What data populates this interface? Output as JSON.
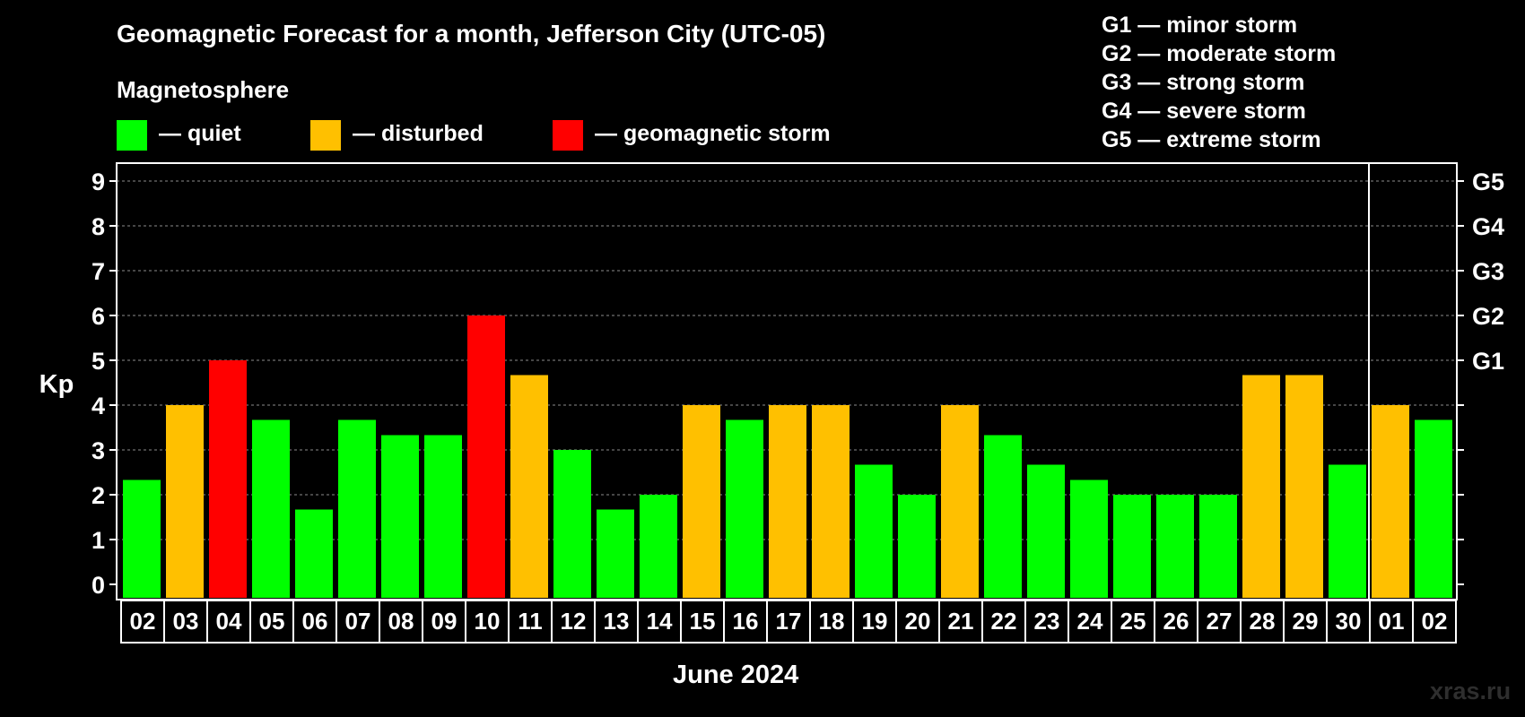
{
  "chart_data": {
    "type": "bar",
    "title": "Geomagnetic Forecast for a month, Jefferson City (UTC-05)",
    "subtitle": "Magnetosphere",
    "xlabel": "June 2024",
    "ylabel": "Kp",
    "ylim": [
      0,
      9
    ],
    "yticks": [
      "0",
      "1",
      "2",
      "3",
      "4",
      "5",
      "6",
      "7",
      "8",
      "9"
    ],
    "right_axis": [
      {
        "kp": 5,
        "label": "G1"
      },
      {
        "kp": 6,
        "label": "G2"
      },
      {
        "kp": 7,
        "label": "G3"
      },
      {
        "kp": 8,
        "label": "G4"
      },
      {
        "kp": 9,
        "label": "G5"
      }
    ],
    "categories": [
      "02",
      "03",
      "04",
      "05",
      "06",
      "07",
      "08",
      "09",
      "10",
      "11",
      "12",
      "13",
      "14",
      "15",
      "16",
      "17",
      "18",
      "19",
      "20",
      "21",
      "22",
      "23",
      "24",
      "25",
      "26",
      "27",
      "28",
      "29",
      "30",
      "01",
      "02"
    ],
    "values": [
      2.33,
      4,
      5,
      3.67,
      1.67,
      3.67,
      3.33,
      3.33,
      6,
      4.67,
      3,
      1.67,
      2,
      4,
      3.67,
      4,
      4,
      2.67,
      2,
      4,
      3.33,
      2.67,
      2.33,
      2,
      2,
      2,
      4.67,
      4.67,
      2.67,
      4,
      3.67
    ],
    "status": [
      "quiet",
      "disturbed",
      "storm",
      "quiet",
      "quiet",
      "quiet",
      "quiet",
      "quiet",
      "storm",
      "disturbed",
      "quiet",
      "quiet",
      "quiet",
      "disturbed",
      "quiet",
      "disturbed",
      "disturbed",
      "quiet",
      "quiet",
      "disturbed",
      "quiet",
      "quiet",
      "quiet",
      "quiet",
      "quiet",
      "quiet",
      "disturbed",
      "disturbed",
      "quiet",
      "disturbed",
      "quiet"
    ],
    "month_divider_after_index": 28,
    "legend": [
      {
        "key": "quiet",
        "label": "— quiet",
        "color": "#00ff00"
      },
      {
        "key": "disturbed",
        "label": "— disturbed",
        "color": "#ffc000"
      },
      {
        "key": "storm",
        "label": "— geomagnetic storm",
        "color": "#ff0000"
      }
    ],
    "storm_scale": [
      "G1 — minor storm",
      "G2 — moderate storm",
      "G3 — strong storm",
      "G4 — severe storm",
      "G5 — extreme storm"
    ]
  },
  "watermark": "xras.ru"
}
